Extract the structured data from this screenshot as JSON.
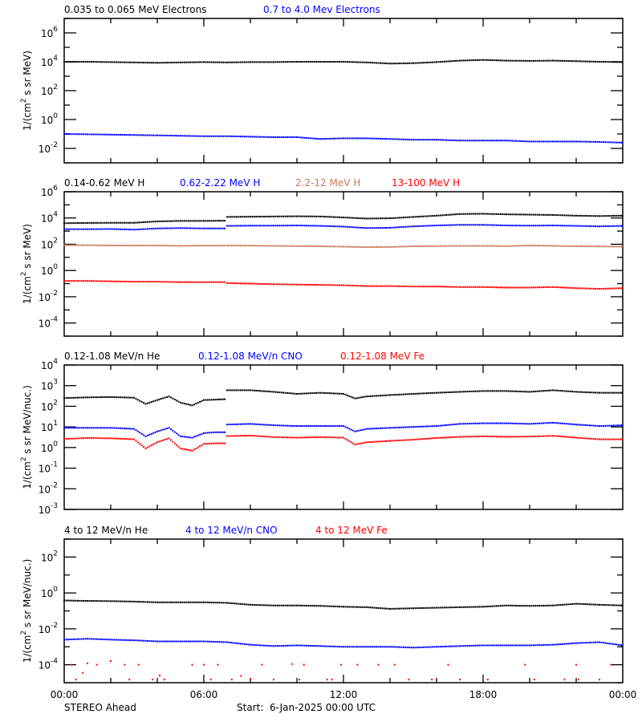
{
  "chart_data": [
    {
      "type": "scatter",
      "yscale": "log",
      "ylim": [
        0.001,
        10000000.0
      ],
      "ylabel": "1/(cm2 s sr MeV)",
      "ylabel_parts": {
        "pre": "1/(cm",
        "sup": "2",
        "post": " s sr MeV)"
      },
      "ytick_exponents": [
        6,
        4,
        2,
        0,
        -2
      ],
      "x": [
        0,
        1,
        2,
        3,
        4,
        5,
        6,
        7,
        8,
        9,
        10,
        11,
        12,
        13,
        14,
        15,
        16,
        17,
        18,
        19,
        20,
        21,
        22,
        23,
        24
      ],
      "series": [
        {
          "name": "0.035 to 0.065 MeV Electrons",
          "color": "#000000",
          "values": [
            10000,
            10000,
            9500,
            9000,
            8500,
            9000,
            9500,
            9000,
            9500,
            9500,
            10000,
            10000,
            10000,
            9000,
            7500,
            8000,
            9500,
            12000,
            13500,
            12000,
            11500,
            12000,
            11000,
            10000,
            9500
          ]
        },
        {
          "name": "0.7 to 4.0 Mev Electrons",
          "color": "#0000ff",
          "values": [
            0.1,
            0.095,
            0.09,
            0.085,
            0.08,
            0.075,
            0.07,
            0.07,
            0.065,
            0.06,
            0.06,
            0.045,
            0.05,
            0.05,
            0.045,
            0.04,
            0.04,
            0.035,
            0.035,
            0.035,
            0.03,
            0.03,
            0.03,
            0.028,
            0.025
          ]
        }
      ]
    },
    {
      "type": "scatter",
      "yscale": "log",
      "ylim": [
        1e-05,
        1000000.0
      ],
      "ylabel": "1/(cm2 s sr MeV)",
      "ylabel_parts": {
        "pre": "1/(cm",
        "sup": "2",
        "post": " s sr MeV)"
      },
      "ytick_exponents": [
        6,
        4,
        2,
        0,
        -2,
        -4
      ],
      "x": [
        0,
        1,
        2,
        3,
        4,
        5,
        6,
        6.9,
        7,
        8,
        9,
        10,
        11,
        12,
        13,
        14,
        15,
        16,
        17,
        18,
        19,
        20,
        21,
        22,
        23,
        24
      ],
      "series": [
        {
          "name": "0.14-0.62 MeV H",
          "color": "#000000",
          "values": [
            4000,
            4200,
            4300,
            4300,
            5500,
            6000,
            6000,
            6200,
            12000,
            12500,
            13000,
            13500,
            13000,
            11000,
            9000,
            9500,
            12000,
            15000,
            20000,
            21000,
            19000,
            18000,
            17000,
            15000,
            14000,
            15000
          ]
        },
        {
          "name": "0.62-2.22 MeV H",
          "color": "#0000ff",
          "values": [
            1400,
            1400,
            1450,
            1300,
            1600,
            1700,
            1600,
            1600,
            2500,
            2600,
            2600,
            2700,
            2500,
            2200,
            1700,
            1800,
            2300,
            2700,
            3000,
            3000,
            2700,
            2600,
            2700,
            2500,
            2300,
            2500
          ]
        },
        {
          "name": "2.2-12 MeV H",
          "color": "#c8785a",
          "values": [
            85,
            85,
            80,
            80,
            80,
            75,
            78,
            78,
            80,
            78,
            75,
            72,
            70,
            65,
            60,
            62,
            70,
            72,
            75,
            75,
            72,
            80,
            75,
            70,
            68,
            65
          ]
        },
        {
          "name": "13-100 MeV H",
          "color": "#ff0000",
          "values": [
            0.16,
            0.16,
            0.15,
            0.14,
            0.14,
            0.13,
            0.13,
            0.13,
            0.11,
            0.1,
            0.09,
            0.085,
            0.08,
            0.075,
            0.065,
            0.065,
            0.06,
            0.06,
            0.055,
            0.055,
            0.05,
            0.05,
            0.055,
            0.045,
            0.04,
            0.045
          ]
        }
      ]
    },
    {
      "type": "scatter",
      "yscale": "log",
      "ylim": [
        0.001,
        10000.0
      ],
      "ylabel": "1/(cm2 s sr MeV/nuc.)",
      "ylabel_parts": {
        "pre": "1/(cm",
        "sup": "2",
        "post": " s sr MeV/nuc.)"
      },
      "ytick_exponents": [
        4,
        3,
        2,
        1,
        0,
        -1,
        -2,
        -3
      ],
      "x": [
        0,
        1,
        2,
        3,
        3.5,
        4,
        4.5,
        5,
        5.5,
        6,
        6.5,
        6.9,
        7,
        8,
        9,
        10,
        11,
        12,
        12.5,
        13,
        14,
        15,
        16,
        17,
        18,
        19,
        20,
        21,
        22,
        23,
        24
      ],
      "series": [
        {
          "name": "0.12-1.08 MeV/n He",
          "color": "#000000",
          "values": [
            250,
            270,
            280,
            260,
            130,
            200,
            300,
            150,
            110,
            200,
            210,
            220,
            600,
            600,
            500,
            400,
            450,
            400,
            240,
            300,
            350,
            400,
            450,
            500,
            550,
            550,
            500,
            600,
            500,
            450,
            450
          ]
        },
        {
          "name": "0.12-1.08 MeV/n CNO",
          "color": "#0000ff",
          "values": [
            9,
            9,
            9,
            8,
            3.5,
            6,
            9,
            3.5,
            3,
            5,
            5.5,
            5.5,
            13,
            14,
            12,
            11,
            11,
            11,
            6,
            8,
            9,
            10,
            11,
            14,
            15,
            15,
            14,
            16,
            13,
            11,
            12
          ]
        },
        {
          "name": "0.12-1.08 MeV Fe",
          "color": "#ff0000",
          "values": [
            2.6,
            2.9,
            2.8,
            2.5,
            0.9,
            1.8,
            2.8,
            0.9,
            0.7,
            1.5,
            1.6,
            1.6,
            3.6,
            3.8,
            3.2,
            3.0,
            3.2,
            3.0,
            1.4,
            1.8,
            2.1,
            2.4,
            2.9,
            3.3,
            3.5,
            3.3,
            3.4,
            3.7,
            3.0,
            2.5,
            2.5
          ]
        }
      ]
    },
    {
      "type": "scatter",
      "yscale": "log",
      "ylim": [
        1e-05,
        1000.0
      ],
      "ylabel": "1/(cm2 s sr MeV/nuc.)",
      "ylabel_parts": {
        "pre": "1/(cm",
        "sup": "2",
        "post": " s sr MeV/nuc.)"
      },
      "ytick_exponents": [
        2,
        0,
        -2,
        -4
      ],
      "x": [
        0,
        1,
        2,
        3,
        4,
        5,
        6,
        7,
        8,
        9,
        10,
        11,
        12,
        13,
        14,
        15,
        16,
        17,
        18,
        19,
        20,
        21,
        22,
        23,
        24
      ],
      "series": [
        {
          "name": "4 to 12 MeV/n He",
          "color": "#000000",
          "values": [
            0.38,
            0.36,
            0.35,
            0.33,
            0.3,
            0.3,
            0.3,
            0.28,
            0.22,
            0.2,
            0.2,
            0.19,
            0.17,
            0.16,
            0.13,
            0.14,
            0.15,
            0.16,
            0.17,
            0.2,
            0.19,
            0.2,
            0.25,
            0.22,
            0.2
          ]
        },
        {
          "name": "4 to 12 MeV/n CNO",
          "color": "#0000ff",
          "values": [
            0.0025,
            0.0028,
            0.0025,
            0.0023,
            0.002,
            0.002,
            0.002,
            0.0018,
            0.0013,
            0.0011,
            0.0012,
            0.0011,
            0.001,
            0.001,
            0.001,
            0.0009,
            0.001,
            0.0011,
            0.0012,
            0.0012,
            0.0012,
            0.0013,
            0.0016,
            0.0018,
            0.0012
          ]
        },
        {
          "name": "4 to 12 MeV Fe",
          "color": "#ff0000",
          "points": [
            [
              0.3,
              0.0001
            ],
            [
              0.5,
              1.5e-05
            ],
            [
              0.8,
              3.5e-05
            ],
            [
              1.0,
              0.00012
            ],
            [
              1.4,
              0.0001
            ],
            [
              2.0,
              0.00016
            ],
            [
              2.6,
              0.0001
            ],
            [
              2.8,
              1.5e-05
            ],
            [
              3.2,
              0.0001
            ],
            [
              3.8,
              1.5e-05
            ],
            [
              4.1,
              2.5e-05
            ],
            [
              4.3,
              1.5e-05
            ],
            [
              5.5,
              0.0001
            ],
            [
              6.0,
              0.0001
            ],
            [
              6.3,
              1.5e-05
            ],
            [
              6.6,
              0.0001
            ],
            [
              7.2,
              1.5e-05
            ],
            [
              7.6,
              2.4e-05
            ],
            [
              8.0,
              1.5e-05
            ],
            [
              8.5,
              0.0001
            ],
            [
              9.0,
              1.5e-05
            ],
            [
              9.8,
              0.00011
            ],
            [
              10.1,
              1.5e-05
            ],
            [
              10.3,
              0.0001
            ],
            [
              11.3,
              1.5e-05
            ],
            [
              11.5,
              1.5e-05
            ],
            [
              11.9,
              0.0001
            ],
            [
              12.6,
              0.0001
            ],
            [
              13.5,
              0.0001
            ],
            [
              14.2,
              0.0001
            ],
            [
              14.8,
              1.5e-05
            ],
            [
              15.8,
              1.5e-05
            ],
            [
              16.5,
              0.0001
            ],
            [
              17.0,
              1.5e-05
            ],
            [
              18.2,
              1.5e-05
            ],
            [
              19.8,
              0.0001
            ],
            [
              20.2,
              1.5e-05
            ],
            [
              21.5,
              1.5e-05
            ],
            [
              22.0,
              0.0001
            ],
            [
              22.1,
              1.5e-05
            ],
            [
              23.0,
              1.5e-05
            ],
            [
              23.5,
              0.0001
            ]
          ]
        }
      ]
    }
  ],
  "x_axis": {
    "range_hours": [
      0,
      24
    ],
    "tick_labels": [
      "00:00",
      "06:00",
      "12:00",
      "18:00",
      "00:00"
    ]
  },
  "footer": {
    "spacecraft": "STEREO Ahead",
    "start_label": "Start:  6-Jan-2025 00:00 UTC"
  }
}
